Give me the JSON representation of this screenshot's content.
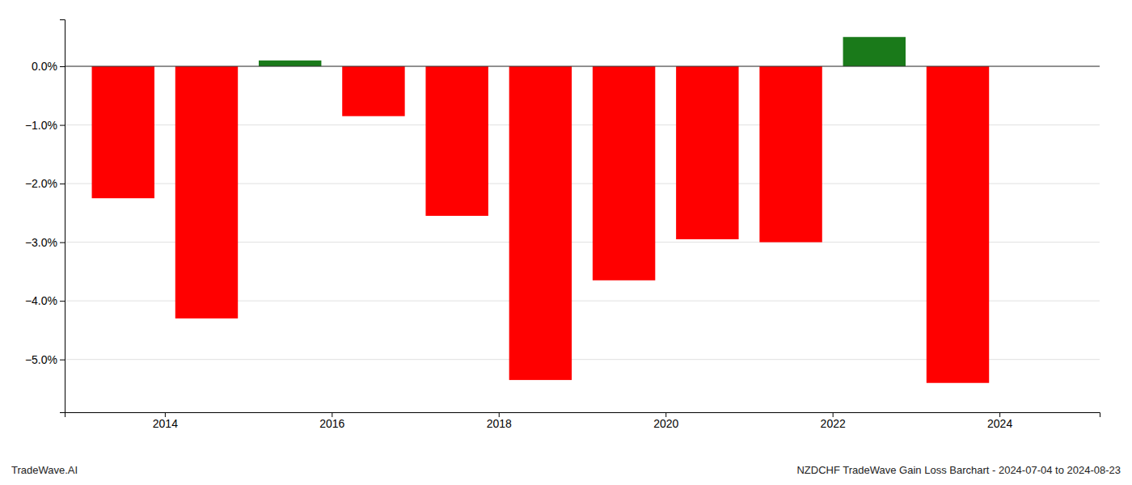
{
  "chart_data": {
    "type": "bar",
    "title": "NZDCHF TradeWave Gain Loss Barchart - 2024-07-04 to 2024-08-23",
    "annotations": [
      "TradeWave.AI"
    ],
    "x": [
      2013.5,
      2014.5,
      2015.5,
      2016.5,
      2017.5,
      2018.5,
      2019.5,
      2020.5,
      2021.5,
      2022.5,
      2023.5
    ],
    "values": [
      -2.25,
      -4.3,
      0.1,
      -0.85,
      -2.55,
      -5.35,
      -3.65,
      -2.95,
      -3.0,
      0.5,
      -5.4
    ],
    "colors": [
      "#ff0000",
      "#ff0000",
      "#1a7a1a",
      "#ff0000",
      "#ff0000",
      "#ff0000",
      "#ff0000",
      "#ff0000",
      "#ff0000",
      "#1a7a1a",
      "#ff0000"
    ],
    "xlim": [
      2012.8,
      2025.2
    ],
    "xticks": [
      2014,
      2016,
      2018,
      2020,
      2022,
      2024
    ],
    "ylim": [
      -5.9,
      0.8
    ],
    "yticks": [
      {
        "value": -5,
        "label": "−5.0%"
      },
      {
        "value": -4,
        "label": "−4.0%"
      },
      {
        "value": -3,
        "label": "−3.0%"
      },
      {
        "value": -2,
        "label": "−2.0%"
      },
      {
        "value": -1,
        "label": "−1.0%"
      },
      {
        "value": 0,
        "label": "0.0%"
      }
    ],
    "grid": true
  }
}
